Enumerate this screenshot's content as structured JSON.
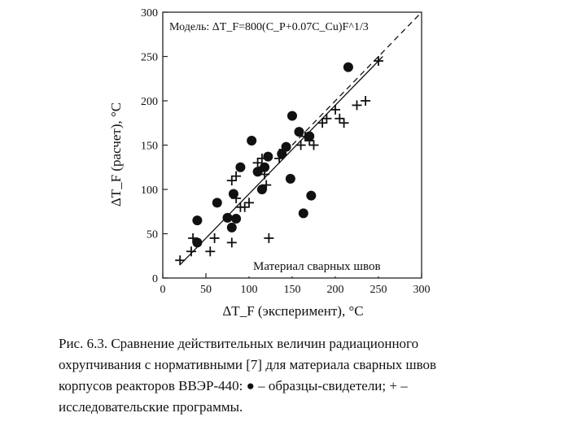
{
  "chart_data": {
    "type": "scatter",
    "model_label": "Модель: ΔT_F=800(C_P+0.07C_Cu)F^1/3",
    "legend_text": "Материал сварных швов",
    "xlabel": "ΔT_F (эксперимент), °C",
    "ylabel": "ΔT_F (расчет), °C",
    "xlim": [
      0,
      300
    ],
    "ylim": [
      0,
      300
    ],
    "x_ticks": [
      "0",
      "50",
      "100",
      "150",
      "200",
      "250",
      "300"
    ],
    "y_ticks": [
      "0",
      "50",
      "100",
      "150",
      "200",
      "250",
      "300"
    ],
    "grid": false,
    "series": [
      {
        "marker": "circle",
        "points": [
          [
            40,
            65
          ],
          [
            40,
            40
          ],
          [
            63,
            85
          ],
          [
            75,
            68
          ],
          [
            80,
            57
          ],
          [
            85,
            67
          ],
          [
            82,
            95
          ],
          [
            90,
            125
          ],
          [
            103,
            155
          ],
          [
            110,
            120
          ],
          [
            115,
            100
          ],
          [
            118,
            125
          ],
          [
            122,
            137
          ],
          [
            138,
            140
          ],
          [
            143,
            148
          ],
          [
            148,
            112
          ],
          [
            150,
            183
          ],
          [
            158,
            165
          ],
          [
            163,
            73
          ],
          [
            172,
            93
          ],
          [
            170,
            160
          ],
          [
            215,
            238
          ]
        ]
      },
      {
        "marker": "plus",
        "points": [
          [
            20,
            20
          ],
          [
            33,
            30
          ],
          [
            35,
            45
          ],
          [
            55,
            30
          ],
          [
            60,
            45
          ],
          [
            80,
            40
          ],
          [
            80,
            110
          ],
          [
            85,
            115
          ],
          [
            85,
            90
          ],
          [
            90,
            80
          ],
          [
            95,
            80
          ],
          [
            100,
            85
          ],
          [
            110,
            130
          ],
          [
            115,
            125
          ],
          [
            115,
            135
          ],
          [
            118,
            117
          ],
          [
            120,
            105
          ],
          [
            123,
            45
          ],
          [
            135,
            135
          ],
          [
            140,
            145
          ],
          [
            160,
            150
          ],
          [
            165,
            160
          ],
          [
            170,
            155
          ],
          [
            175,
            150
          ],
          [
            185,
            175
          ],
          [
            190,
            180
          ],
          [
            200,
            190
          ],
          [
            205,
            180
          ],
          [
            210,
            175
          ],
          [
            225,
            195
          ],
          [
            235,
            200
          ],
          [
            250,
            245
          ]
        ]
      }
    ],
    "fit_line": [
      [
        20,
        15
      ],
      [
        255,
        250
      ]
    ],
    "dashed_line": [
      [
        150,
        150
      ],
      [
        300,
        300
      ]
    ]
  },
  "caption": {
    "lines": [
      "Рис. 6.3. Сравнение действительных величин радиационного",
      "охрупчивания с нормативными [7] для материала сварных швов",
      "корпусов реакторов ВВЭР-440: ● – образцы-свидетели; + –",
      "исследовательские программы."
    ]
  }
}
